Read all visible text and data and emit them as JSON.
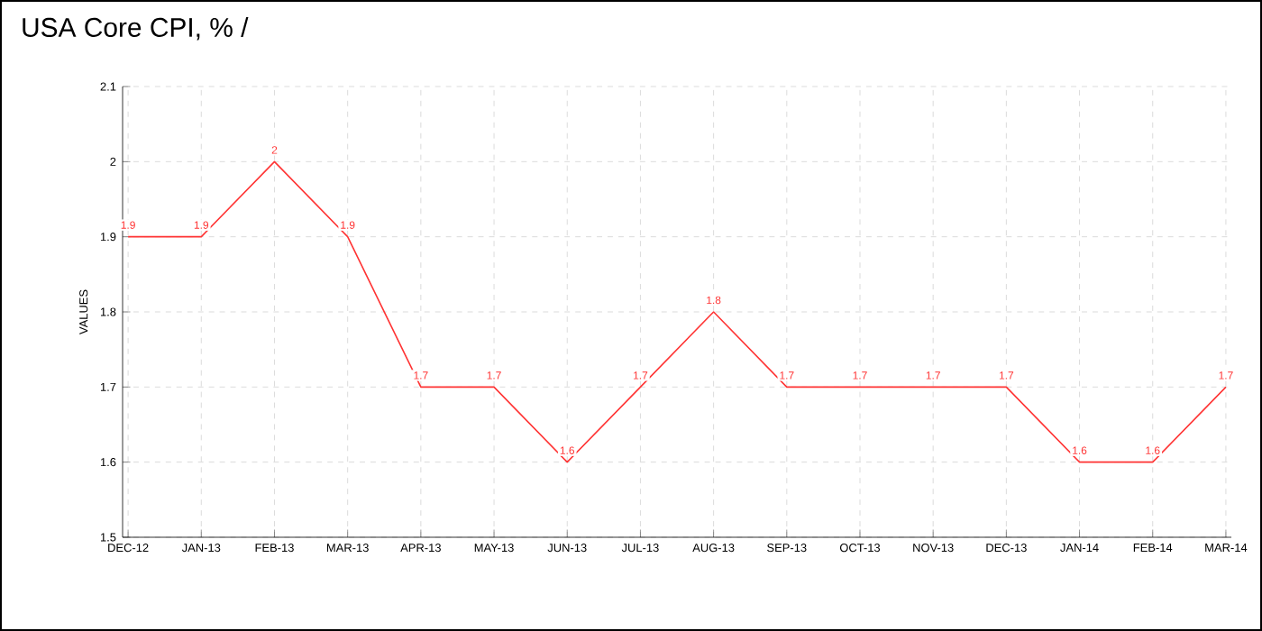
{
  "chart_data": {
    "type": "line",
    "title": "USA Core CPI, % /",
    "ylabel": "VALUES",
    "categories": [
      "DEC-12",
      "JAN-13",
      "FEB-13",
      "MAR-13",
      "APR-13",
      "MAY-13",
      "JUN-13",
      "JUL-13",
      "AUG-13",
      "SEP-13",
      "OCT-13",
      "NOV-13",
      "DEC-13",
      "JAN-14",
      "FEB-14",
      "MAR-14"
    ],
    "values": [
      1.9,
      1.9,
      2,
      1.9,
      1.7,
      1.7,
      1.6,
      1.7,
      1.8,
      1.7,
      1.7,
      1.7,
      1.7,
      1.6,
      1.6,
      1.7
    ],
    "color": "#ff3333",
    "ylim": [
      1.5,
      2.1
    ],
    "yticks": [
      1.5,
      1.6,
      1.7,
      1.8,
      1.9,
      2,
      2.1
    ],
    "grid": true,
    "data_labels": true,
    "marker": "none",
    "line_style": "solid"
  }
}
